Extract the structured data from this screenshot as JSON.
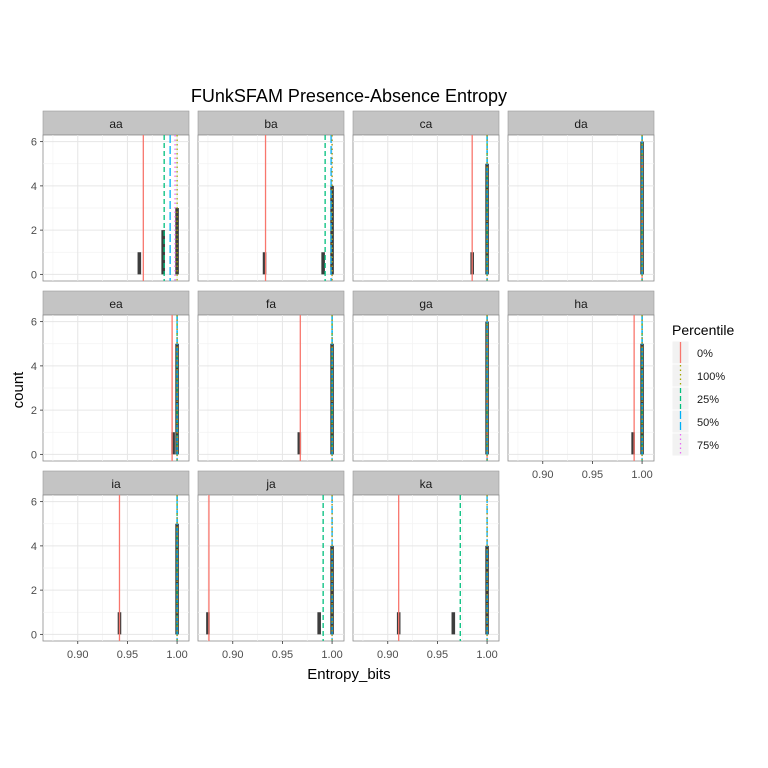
{
  "chart_data": {
    "type": "bar",
    "title": "FUnkSFAM Presence-Absence Entropy",
    "xlabel": "Entropy_bits",
    "ylabel": "count",
    "xlim": [
      0.865,
      1.012
    ],
    "ylim": [
      -0.3,
      6.3
    ],
    "x_ticks": [
      0.9,
      0.95,
      1.0
    ],
    "x_tick_labels": [
      "0.90",
      "0.95",
      "1.00"
    ],
    "y_ticks": [
      0,
      2,
      4,
      6
    ],
    "y_tick_labels": [
      "0",
      "2",
      "4",
      "6"
    ],
    "grid": true,
    "legend": {
      "title": "Percentile",
      "placement": "right",
      "entries": [
        {
          "label": "0%",
          "color": "#F8766D",
          "dash": "solid"
        },
        {
          "label": "100%",
          "color": "#A3A500",
          "dash": "dotted"
        },
        {
          "label": "25%",
          "color": "#00BF7D",
          "dash": "dashed"
        },
        {
          "label": "50%",
          "color": "#00B0F6",
          "dash": "longdash"
        },
        {
          "label": "75%",
          "color": "#E76BF3",
          "dash": "dotted"
        }
      ]
    },
    "panels": [
      {
        "label": "aa",
        "bars": [
          {
            "x": 0.962,
            "count": 1
          },
          {
            "x": 0.986,
            "count": 2
          },
          {
            "x": 1.0,
            "count": 3
          }
        ],
        "percentiles": {
          "0%": 0.966,
          "25%": 0.987,
          "50%": 0.993,
          "75%": 0.998,
          "100%": 1.0
        }
      },
      {
        "label": "ba",
        "bars": [
          {
            "x": 0.932,
            "count": 1
          },
          {
            "x": 0.991,
            "count": 1
          },
          {
            "x": 1.0,
            "count": 4
          }
        ],
        "percentiles": {
          "0%": 0.933,
          "25%": 0.993,
          "50%": 0.999,
          "75%": 1.0,
          "100%": 1.0
        }
      },
      {
        "label": "ca",
        "bars": [
          {
            "x": 0.985,
            "count": 1
          },
          {
            "x": 1.0,
            "count": 5
          }
        ],
        "percentiles": {
          "0%": 0.985,
          "25%": 1.0,
          "50%": 1.0,
          "75%": 1.0,
          "100%": 1.0
        }
      },
      {
        "label": "da",
        "bars": [
          {
            "x": 1.0,
            "count": 6
          }
        ],
        "percentiles": {
          "0%": 1.0,
          "25%": 1.0,
          "50%": 1.0,
          "75%": 1.0,
          "100%": 1.0
        }
      },
      {
        "label": "ea",
        "bars": [
          {
            "x": 0.996,
            "count": 1
          },
          {
            "x": 1.0,
            "count": 5
          }
        ],
        "percentiles": {
          "0%": 0.995,
          "25%": 1.0,
          "50%": 1.0,
          "75%": 1.0,
          "100%": 1.0
        }
      },
      {
        "label": "fa",
        "bars": [
          {
            "x": 0.967,
            "count": 1
          },
          {
            "x": 1.0,
            "count": 5
          }
        ],
        "percentiles": {
          "0%": 0.968,
          "25%": 1.0,
          "50%": 1.0,
          "75%": 1.0,
          "100%": 1.0
        }
      },
      {
        "label": "ga",
        "bars": [
          {
            "x": 1.0,
            "count": 6
          }
        ],
        "percentiles": {
          "0%": 1.0,
          "25%": 1.0,
          "50%": 1.0,
          "75%": 1.0,
          "100%": 1.0
        }
      },
      {
        "label": "ha",
        "bars": [
          {
            "x": 0.991,
            "count": 1
          },
          {
            "x": 1.0,
            "count": 5
          }
        ],
        "percentiles": {
          "0%": 0.992,
          "25%": 1.0,
          "50%": 1.0,
          "75%": 1.0,
          "100%": 1.0
        }
      },
      {
        "label": "ia",
        "bars": [
          {
            "x": 0.942,
            "count": 1
          },
          {
            "x": 1.0,
            "count": 5
          }
        ],
        "percentiles": {
          "0%": 0.942,
          "25%": 1.0,
          "50%": 1.0,
          "75%": 1.0,
          "100%": 1.0
        }
      },
      {
        "label": "ja",
        "bars": [
          {
            "x": 0.875,
            "count": 1
          },
          {
            "x": 0.987,
            "count": 1
          },
          {
            "x": 1.0,
            "count": 4
          }
        ],
        "percentiles": {
          "0%": 0.876,
          "25%": 0.991,
          "50%": 1.0,
          "75%": 1.0,
          "100%": 1.0
        }
      },
      {
        "label": "ka",
        "bars": [
          {
            "x": 0.911,
            "count": 1
          },
          {
            "x": 0.966,
            "count": 1
          },
          {
            "x": 1.0,
            "count": 4
          }
        ],
        "percentiles": {
          "0%": 0.911,
          "25%": 0.973,
          "50%": 1.0,
          "75%": 1.0,
          "100%": 1.0
        }
      }
    ]
  }
}
